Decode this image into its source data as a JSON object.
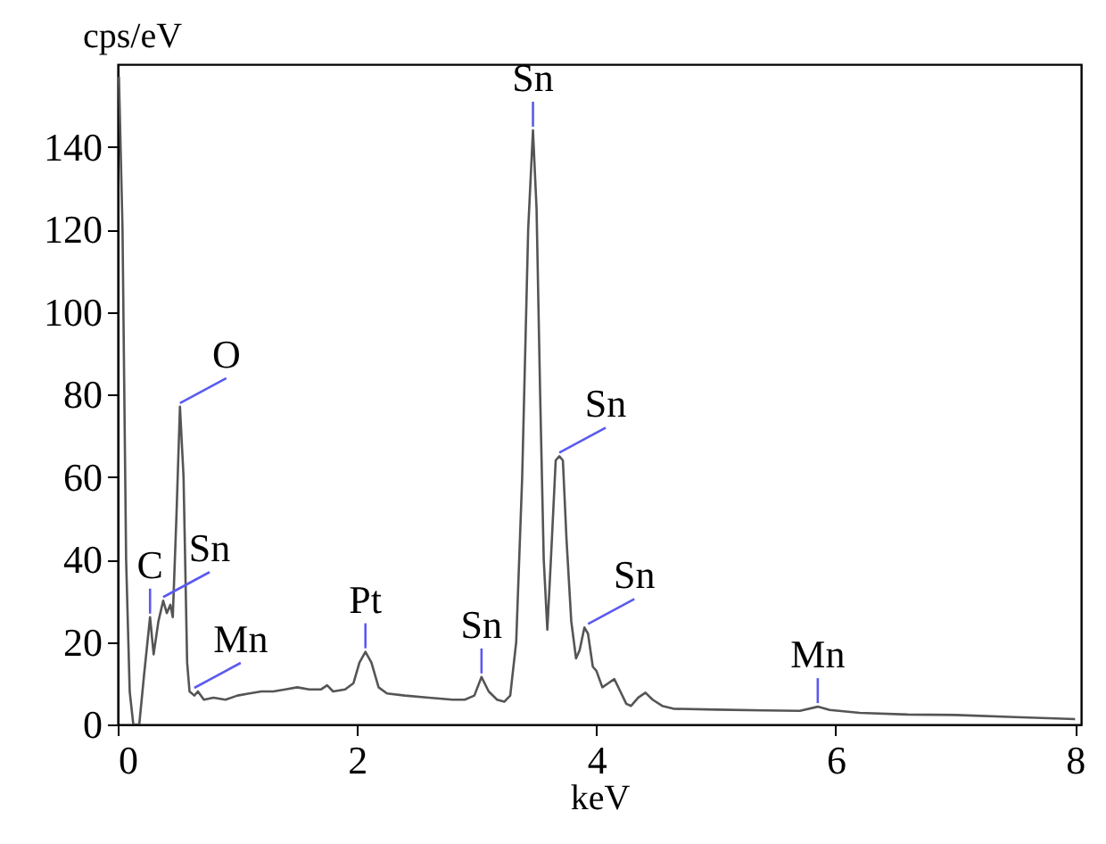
{
  "chart_data": {
    "type": "line",
    "xlabel": "keV",
    "ylabel": "cps/eV",
    "x": [
      0.01,
      0.04,
      0.07,
      0.1,
      0.13,
      0.18,
      0.22,
      0.27,
      0.3,
      0.34,
      0.38,
      0.41,
      0.44,
      0.46,
      0.49,
      0.52,
      0.55,
      0.58,
      0.6,
      0.64,
      0.67,
      0.72,
      0.8,
      0.9,
      1.0,
      1.1,
      1.2,
      1.3,
      1.4,
      1.5,
      1.6,
      1.7,
      1.75,
      1.8,
      1.9,
      1.97,
      2.02,
      2.07,
      2.12,
      2.18,
      2.25,
      2.4,
      2.6,
      2.8,
      2.9,
      2.98,
      3.04,
      3.1,
      3.17,
      3.23,
      3.28,
      3.33,
      3.38,
      3.43,
      3.47,
      3.5,
      3.53,
      3.56,
      3.59,
      3.62,
      3.66,
      3.69,
      3.72,
      3.75,
      3.79,
      3.83,
      3.86,
      3.9,
      3.93,
      3.97,
      4.0,
      4.05,
      4.1,
      4.15,
      4.2,
      4.25,
      4.29,
      4.35,
      4.41,
      4.47,
      4.55,
      4.65,
      5.0,
      5.4,
      5.7,
      5.85,
      5.95,
      6.2,
      6.6,
      7.0,
      7.5,
      8.0
    ],
    "series": [
      {
        "color": "#555555",
        "values": [
          157,
          120,
          40,
          8,
          0,
          0,
          12,
          26,
          17,
          25,
          30,
          27,
          29,
          26,
          50,
          77,
          60,
          15,
          8,
          7,
          8,
          6,
          6.5,
          6,
          7,
          7.5,
          8,
          8,
          8.5,
          9,
          8.5,
          8.5,
          9.5,
          8,
          8.5,
          10,
          15,
          17.6,
          15,
          9,
          7.5,
          7,
          6.5,
          6,
          6,
          7,
          11.5,
          8,
          6,
          5.5,
          7,
          20,
          60,
          120,
          144,
          125,
          80,
          40,
          23,
          40,
          64,
          65,
          64,
          45,
          25,
          16,
          18,
          23.5,
          22,
          14,
          13,
          9,
          10,
          11,
          8,
          5,
          4.5,
          6.5,
          7.7,
          6,
          4.5,
          3.8,
          3.6,
          3.4,
          3.3,
          4.3,
          3.5,
          2.8,
          2.4,
          2.3,
          1.8,
          1.3
        ]
      }
    ],
    "xlim": [
      0,
      8.05
    ],
    "ylim": [
      0,
      160
    ],
    "xticks": [
      0,
      2,
      4,
      6,
      8
    ],
    "yticks": [
      0,
      20,
      40,
      60,
      80,
      100,
      120,
      140
    ],
    "grid": false,
    "legend": false,
    "marker": "none",
    "line_style": "solid",
    "annotations": [
      {
        "text": "C",
        "x": 0.27,
        "y": 26
      },
      {
        "text": "Sn",
        "x": 0.38,
        "y": 30
      },
      {
        "text": "O",
        "x": 0.52,
        "y": 77
      },
      {
        "text": "Mn",
        "x": 0.64,
        "y": 8
      },
      {
        "text": "Pt",
        "x": 2.07,
        "y": 17.6
      },
      {
        "text": "Sn",
        "x": 3.04,
        "y": 11.5
      },
      {
        "text": "Sn",
        "x": 3.47,
        "y": 144
      },
      {
        "text": "Sn",
        "x": 3.69,
        "y": 65
      },
      {
        "text": "Sn",
        "x": 3.93,
        "y": 23.5
      },
      {
        "text": "Mn",
        "x": 5.85,
        "y": 4.3
      }
    ]
  }
}
